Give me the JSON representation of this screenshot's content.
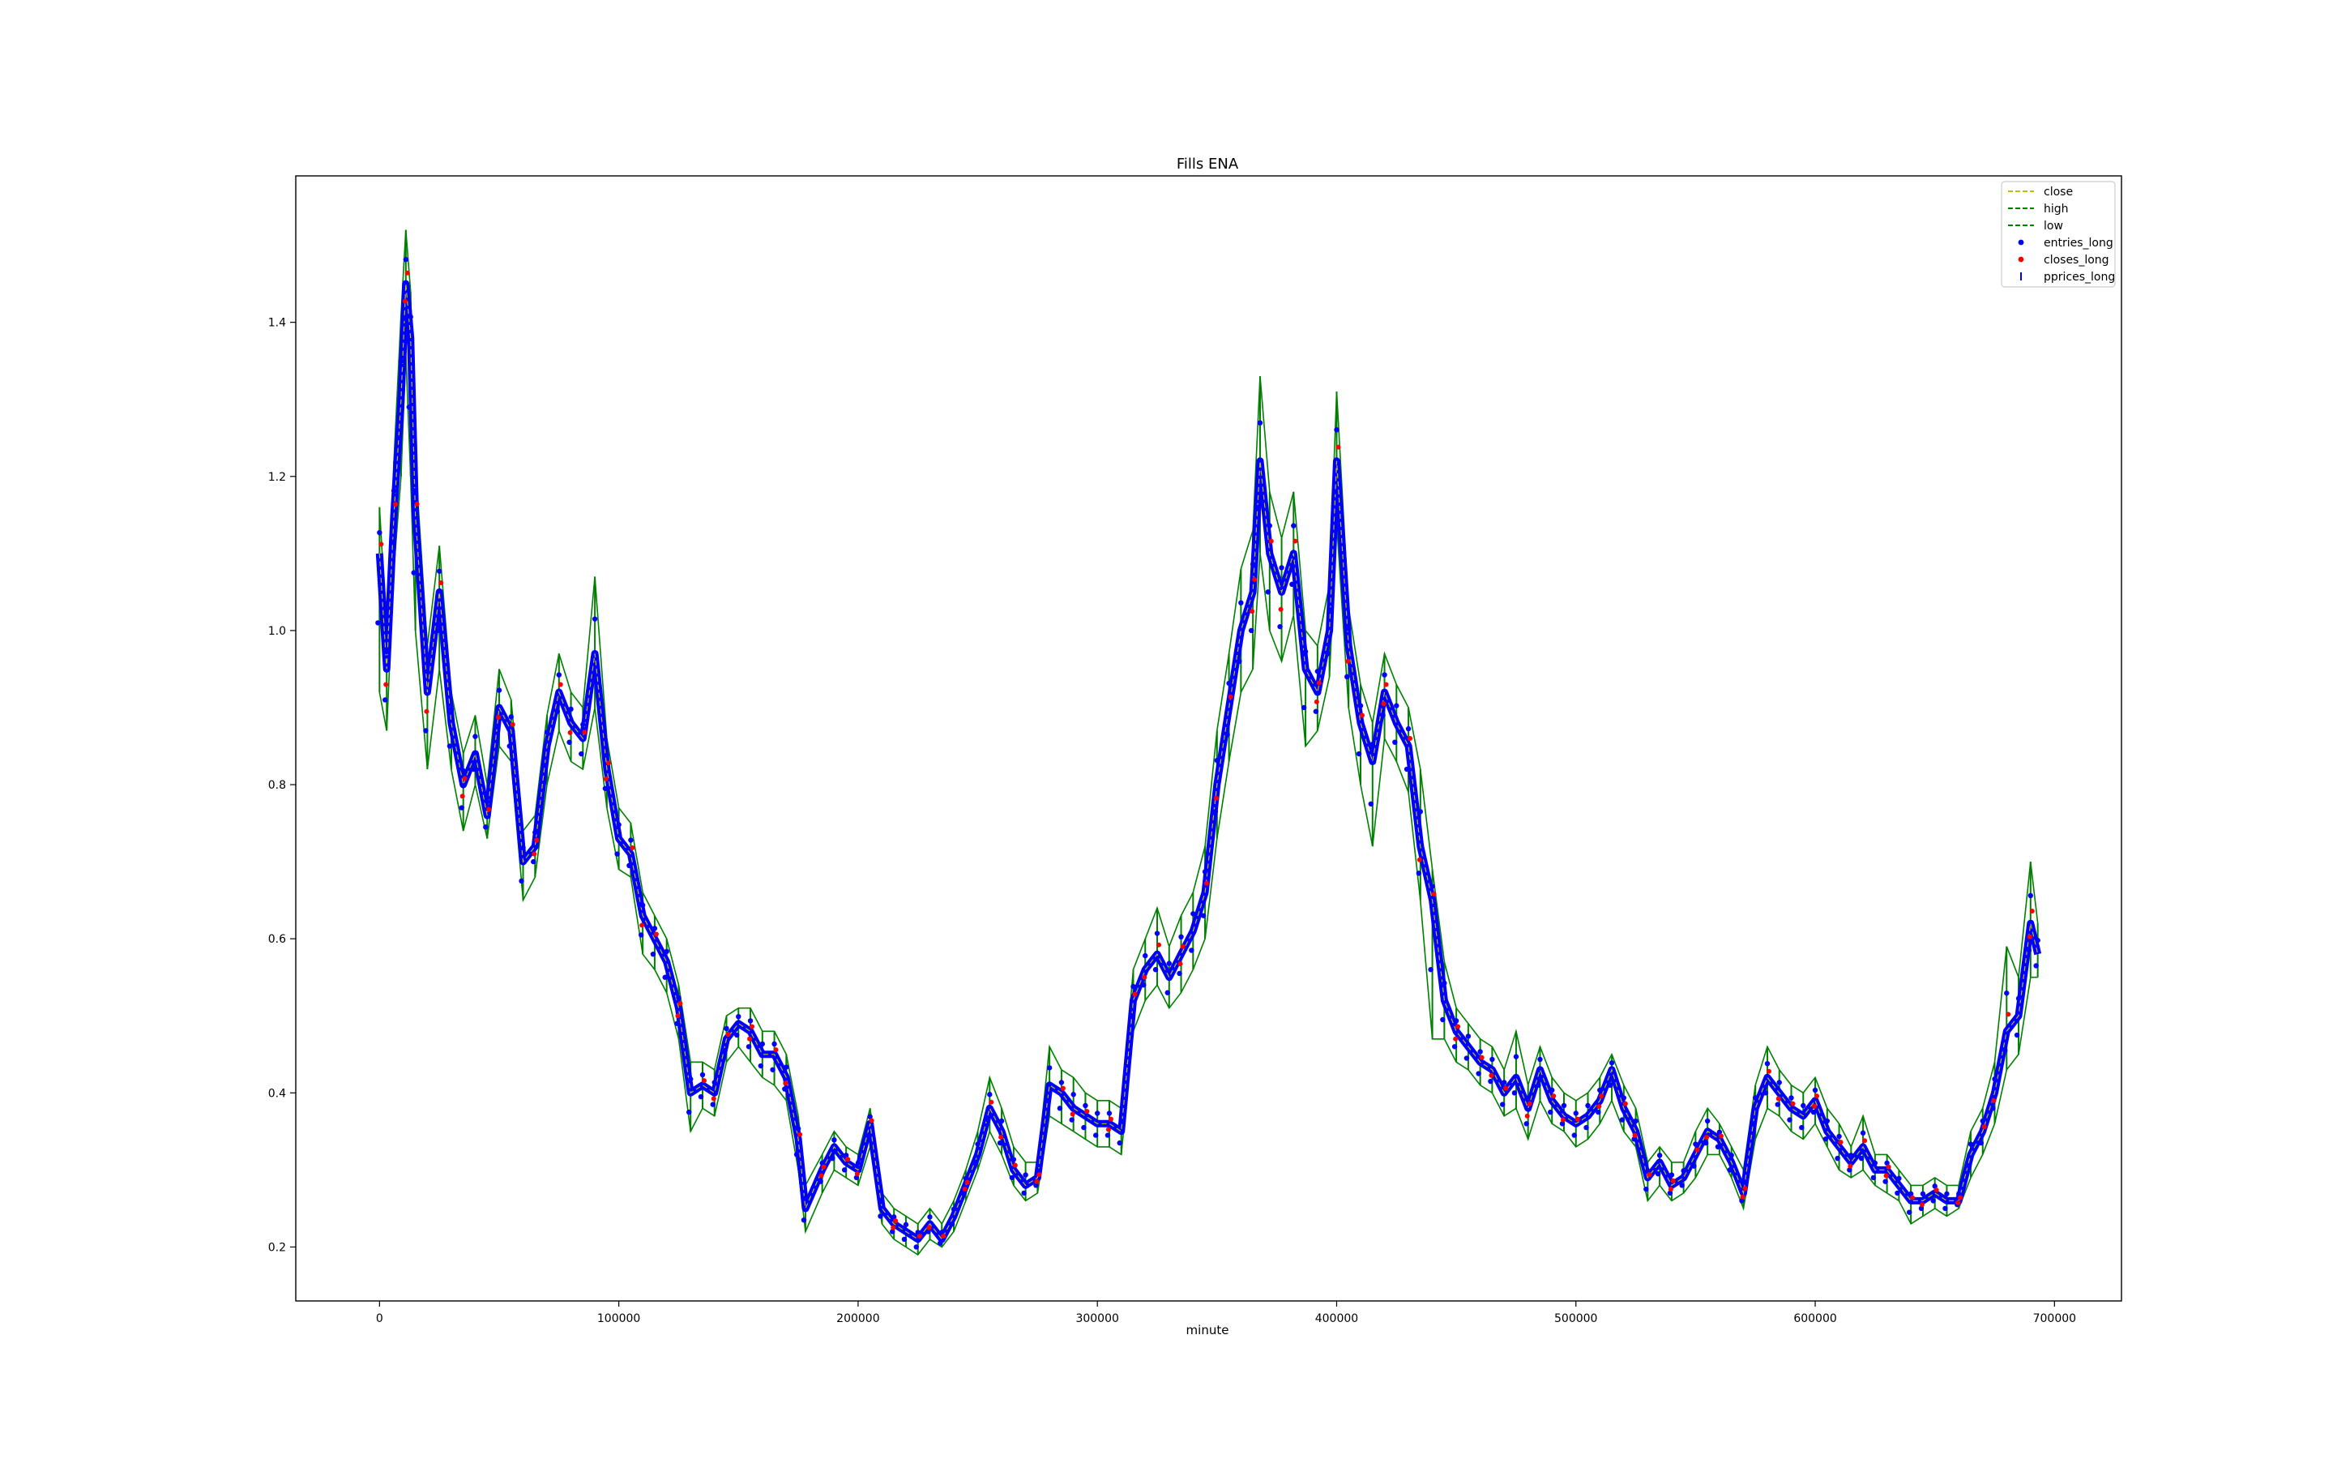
{
  "chart_data": {
    "type": "line",
    "title": "Fills ENA",
    "xlabel": "minute",
    "ylabel": "",
    "xlim": [
      -35000,
      728000
    ],
    "ylim": [
      0.13,
      1.59
    ],
    "grid": false,
    "legend_position": "top-right",
    "x_ticks": [
      0,
      100000,
      200000,
      300000,
      400000,
      500000,
      600000,
      700000
    ],
    "x_tick_labels": [
      "0",
      "100000",
      "200000",
      "300000",
      "400000",
      "500000",
      "600000",
      "700000"
    ],
    "y_ticks": [
      0.2,
      0.4,
      0.6,
      0.8,
      1.0,
      1.2,
      1.4
    ],
    "y_tick_labels": [
      "0.2",
      "0.4",
      "0.6",
      "0.8",
      "1.0",
      "1.2",
      "1.4"
    ],
    "legend": [
      {
        "label": "close",
        "style": "dashed-line",
        "color": "#bfbf00"
      },
      {
        "label": "high",
        "style": "dashed-line",
        "color": "#008000"
      },
      {
        "label": "low",
        "style": "dashed-line",
        "color": "#008000"
      },
      {
        "label": "entries_long",
        "style": "dot",
        "color": "#0000ff"
      },
      {
        "label": "closes_long",
        "style": "dot",
        "color": "#ff0000"
      },
      {
        "label": "pprices_long",
        "style": "vbar",
        "color": "#0000ff"
      }
    ],
    "x": [
      0,
      3000,
      6000,
      9000,
      11000,
      13000,
      15000,
      20000,
      25000,
      30000,
      35000,
      40000,
      45000,
      50000,
      55000,
      60000,
      65000,
      70000,
      75000,
      80000,
      85000,
      90000,
      95000,
      100000,
      105000,
      110000,
      115000,
      120000,
      125000,
      130000,
      135000,
      140000,
      145000,
      150000,
      155000,
      160000,
      165000,
      170000,
      175000,
      178000,
      185000,
      190000,
      195000,
      200000,
      205000,
      210000,
      215000,
      220000,
      225000,
      230000,
      235000,
      240000,
      245000,
      250000,
      255000,
      260000,
      265000,
      270000,
      275000,
      280000,
      285000,
      290000,
      295000,
      300000,
      305000,
      310000,
      315000,
      320000,
      325000,
      330000,
      335000,
      340000,
      345000,
      350000,
      355000,
      360000,
      365000,
      368000,
      372000,
      377000,
      382000,
      387000,
      392000,
      397000,
      400000,
      405000,
      410000,
      415000,
      420000,
      425000,
      430000,
      435000,
      440000,
      445000,
      450000,
      455000,
      460000,
      465000,
      470000,
      475000,
      480000,
      485000,
      490000,
      495000,
      500000,
      505000,
      510000,
      515000,
      520000,
      525000,
      530000,
      535000,
      540000,
      545000,
      550000,
      555000,
      560000,
      565000,
      570000,
      575000,
      580000,
      585000,
      590000,
      595000,
      600000,
      605000,
      610000,
      615000,
      620000,
      625000,
      630000,
      635000,
      640000,
      645000,
      650000,
      655000,
      660000,
      665000,
      670000,
      675000,
      680000,
      685000,
      690000,
      693000
    ],
    "series": [
      {
        "name": "close",
        "color": "#bfbf00",
        "values": [
          1.1,
          0.95,
          1.15,
          1.3,
          1.45,
          1.38,
          1.15,
          0.92,
          1.05,
          0.88,
          0.8,
          0.84,
          0.76,
          0.9,
          0.87,
          0.7,
          0.72,
          0.85,
          0.92,
          0.88,
          0.86,
          0.97,
          0.82,
          0.73,
          0.71,
          0.63,
          0.6,
          0.57,
          0.51,
          0.4,
          0.41,
          0.4,
          0.47,
          0.49,
          0.48,
          0.45,
          0.45,
          0.42,
          0.34,
          0.25,
          0.3,
          0.33,
          0.31,
          0.3,
          0.36,
          0.25,
          0.23,
          0.22,
          0.21,
          0.23,
          0.21,
          0.24,
          0.28,
          0.32,
          0.38,
          0.35,
          0.3,
          0.28,
          0.29,
          0.41,
          0.4,
          0.38,
          0.37,
          0.36,
          0.36,
          0.35,
          0.52,
          0.56,
          0.58,
          0.55,
          0.58,
          0.61,
          0.66,
          0.8,
          0.9,
          1.0,
          1.05,
          1.22,
          1.1,
          1.05,
          1.1,
          0.95,
          0.92,
          1.0,
          1.22,
          0.98,
          0.88,
          0.83,
          0.92,
          0.88,
          0.85,
          0.72,
          0.65,
          0.52,
          0.48,
          0.46,
          0.44,
          0.43,
          0.4,
          0.42,
          0.38,
          0.43,
          0.39,
          0.37,
          0.36,
          0.37,
          0.39,
          0.43,
          0.38,
          0.35,
          0.29,
          0.31,
          0.28,
          0.29,
          0.32,
          0.35,
          0.34,
          0.31,
          0.27,
          0.38,
          0.42,
          0.4,
          0.38,
          0.37,
          0.39,
          0.35,
          0.33,
          0.31,
          0.33,
          0.3,
          0.3,
          0.28,
          0.26,
          0.26,
          0.27,
          0.26,
          0.26,
          0.32,
          0.35,
          0.4,
          0.48,
          0.5,
          0.62,
          0.58
        ]
      },
      {
        "name": "high",
        "color": "#008000",
        "values": [
          1.16,
          1.0,
          1.22,
          1.41,
          1.52,
          1.44,
          1.22,
          0.98,
          1.11,
          0.92,
          0.84,
          0.89,
          0.8,
          0.95,
          0.91,
          0.74,
          0.76,
          0.89,
          0.97,
          0.92,
          0.9,
          1.07,
          0.86,
          0.77,
          0.75,
          0.66,
          0.63,
          0.6,
          0.54,
          0.44,
          0.44,
          0.43,
          0.5,
          0.51,
          0.51,
          0.48,
          0.48,
          0.45,
          0.37,
          0.28,
          0.32,
          0.35,
          0.33,
          0.32,
          0.38,
          0.27,
          0.25,
          0.24,
          0.23,
          0.25,
          0.23,
          0.26,
          0.3,
          0.35,
          0.42,
          0.38,
          0.33,
          0.31,
          0.31,
          0.46,
          0.43,
          0.42,
          0.4,
          0.39,
          0.39,
          0.38,
          0.56,
          0.6,
          0.64,
          0.59,
          0.63,
          0.66,
          0.72,
          0.87,
          0.97,
          1.08,
          1.13,
          1.33,
          1.18,
          1.12,
          1.18,
          1.0,
          0.98,
          1.06,
          1.31,
          1.03,
          0.93,
          0.88,
          0.97,
          0.93,
          0.9,
          0.82,
          0.69,
          0.57,
          0.51,
          0.49,
          0.47,
          0.46,
          0.43,
          0.48,
          0.41,
          0.46,
          0.42,
          0.4,
          0.39,
          0.4,
          0.42,
          0.45,
          0.41,
          0.38,
          0.31,
          0.33,
          0.31,
          0.31,
          0.35,
          0.38,
          0.36,
          0.33,
          0.3,
          0.41,
          0.46,
          0.43,
          0.41,
          0.4,
          0.42,
          0.38,
          0.36,
          0.33,
          0.37,
          0.32,
          0.32,
          0.3,
          0.28,
          0.28,
          0.29,
          0.28,
          0.28,
          0.35,
          0.38,
          0.44,
          0.59,
          0.55,
          0.7,
          0.62
        ]
      },
      {
        "name": "low",
        "color": "#008000",
        "values": [
          0.92,
          0.87,
          1.08,
          1.2,
          1.36,
          1.2,
          1.0,
          0.82,
          0.95,
          0.82,
          0.74,
          0.8,
          0.73,
          0.85,
          0.83,
          0.65,
          0.68,
          0.8,
          0.87,
          0.83,
          0.82,
          0.9,
          0.77,
          0.69,
          0.68,
          0.58,
          0.56,
          0.53,
          0.47,
          0.35,
          0.38,
          0.37,
          0.44,
          0.46,
          0.44,
          0.42,
          0.41,
          0.39,
          0.3,
          0.22,
          0.27,
          0.3,
          0.29,
          0.28,
          0.33,
          0.23,
          0.21,
          0.2,
          0.19,
          0.21,
          0.2,
          0.22,
          0.26,
          0.3,
          0.35,
          0.32,
          0.28,
          0.26,
          0.27,
          0.37,
          0.36,
          0.35,
          0.34,
          0.33,
          0.33,
          0.32,
          0.48,
          0.52,
          0.54,
          0.51,
          0.53,
          0.56,
          0.6,
          0.73,
          0.83,
          0.92,
          0.95,
          1.1,
          1.0,
          0.96,
          1.02,
          0.85,
          0.87,
          0.94,
          1.14,
          0.9,
          0.8,
          0.72,
          0.86,
          0.83,
          0.79,
          0.65,
          0.47,
          0.47,
          0.44,
          0.43,
          0.41,
          0.4,
          0.37,
          0.38,
          0.34,
          0.39,
          0.36,
          0.35,
          0.33,
          0.34,
          0.36,
          0.39,
          0.35,
          0.33,
          0.26,
          0.28,
          0.26,
          0.27,
          0.29,
          0.32,
          0.32,
          0.29,
          0.25,
          0.34,
          0.38,
          0.37,
          0.35,
          0.34,
          0.36,
          0.33,
          0.3,
          0.29,
          0.3,
          0.28,
          0.27,
          0.26,
          0.23,
          0.24,
          0.25,
          0.24,
          0.25,
          0.29,
          0.32,
          0.36,
          0.43,
          0.45,
          0.55,
          0.55
        ]
      }
    ]
  }
}
